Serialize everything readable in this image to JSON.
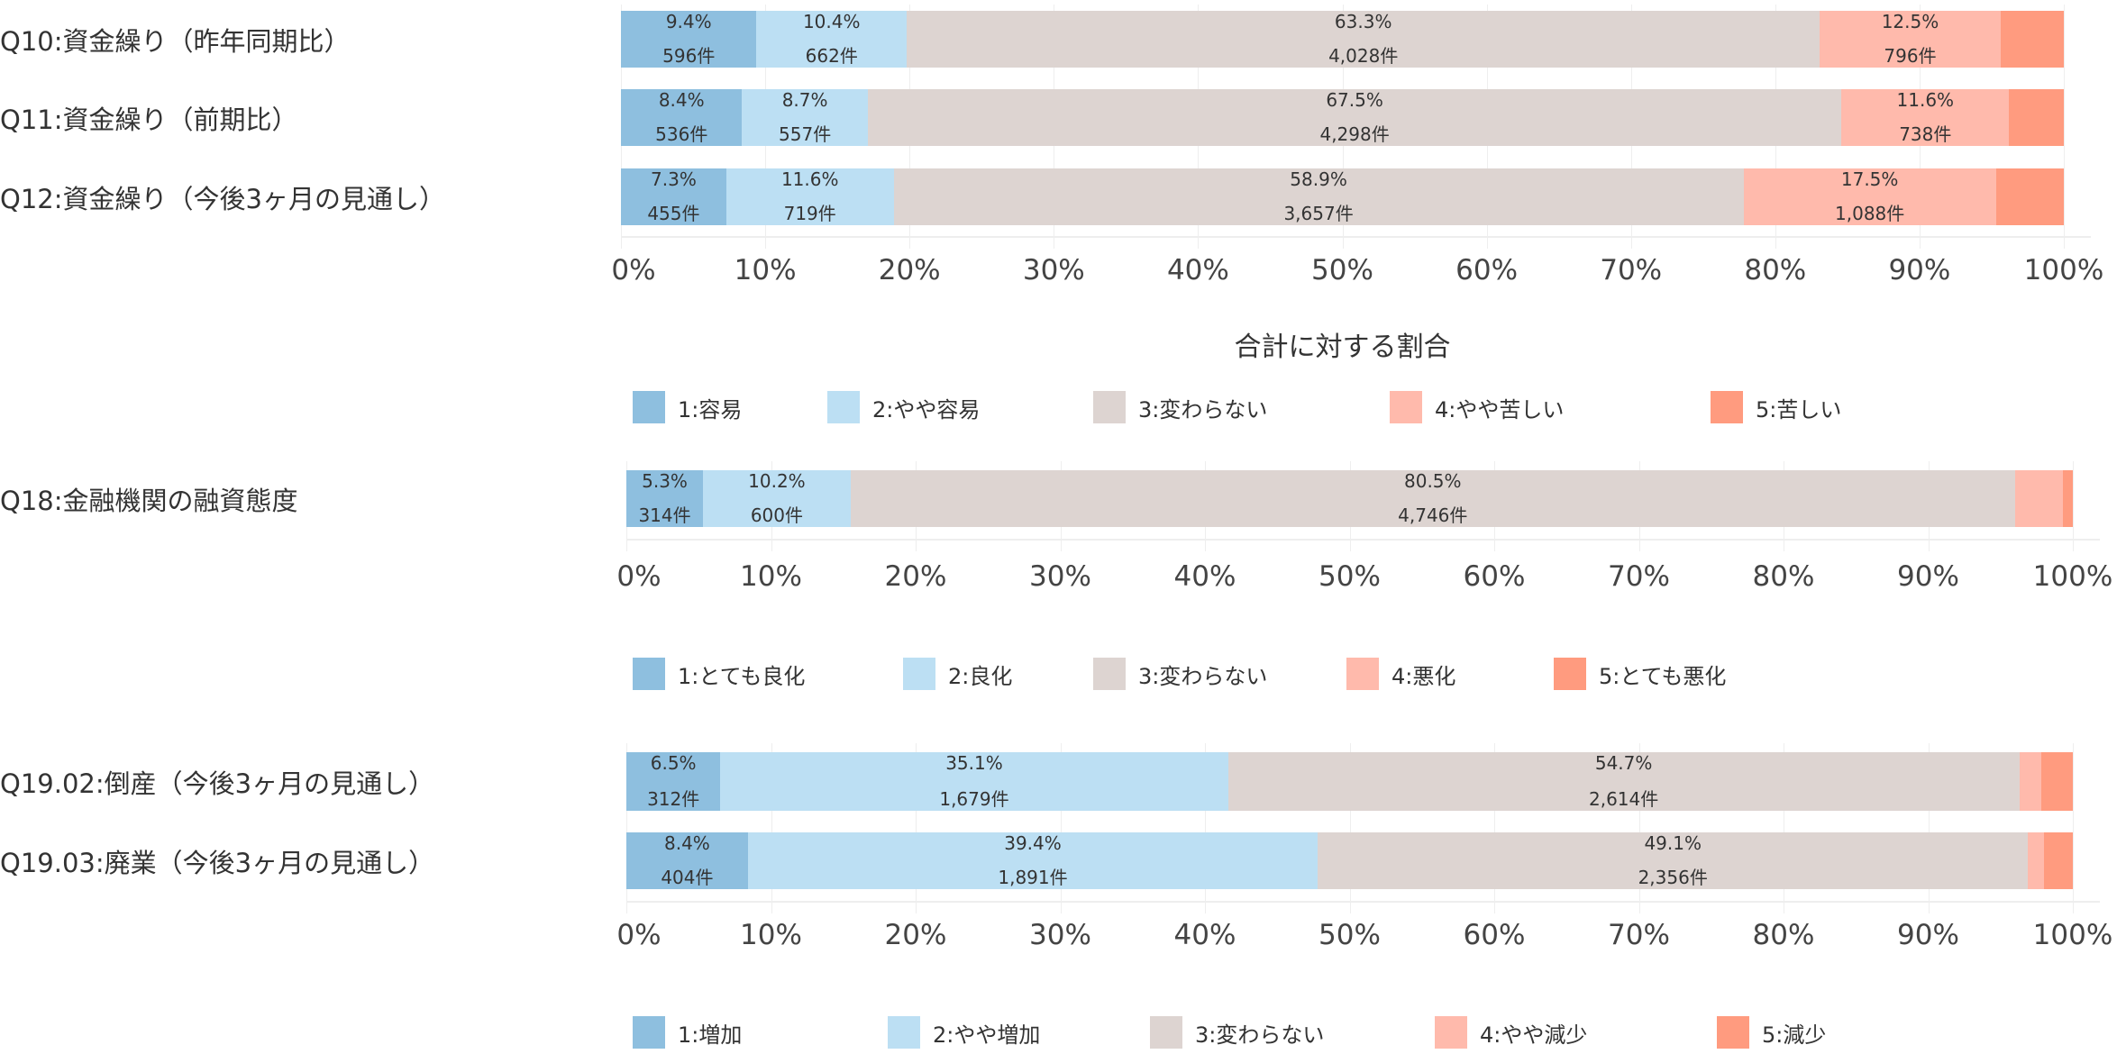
{
  "chart_data": [
    {
      "type": "bar",
      "orientation": "horizontal",
      "stacked": true,
      "normalized": true,
      "categories": [
        "Q10:資金繰り（昨年同期比）",
        "Q11:資金繰り（前期比）",
        "Q12:資金繰り（今後3ヶ月の見通し）"
      ],
      "series": [
        {
          "name": "1:容易",
          "color": "#8ebfdf",
          "values": [
            9.4,
            8.4,
            7.3
          ],
          "counts": [
            "596件",
            "536件",
            "455件"
          ]
        },
        {
          "name": "2:やや容易",
          "color": "#bcdff3",
          "values": [
            10.4,
            8.7,
            11.6
          ],
          "counts": [
            "662件",
            "557件",
            "719件"
          ]
        },
        {
          "name": "3:変わらない",
          "color": "#ddd4d1",
          "values": [
            63.3,
            67.5,
            58.9
          ],
          "counts": [
            "4,028件",
            "4,298件",
            "3,657件"
          ]
        },
        {
          "name": "4:やや苦しい",
          "color": "#ffbaac",
          "values": [
            12.5,
            11.6,
            17.5
          ],
          "counts": [
            "796件",
            "738件",
            "1,088件"
          ]
        },
        {
          "name": "5:苦しい",
          "color": "#ff9b7f",
          "values": [
            4.4,
            3.8,
            4.7
          ],
          "counts": [
            "",
            "",
            ""
          ]
        }
      ],
      "labeled_series": [
        0,
        1,
        2,
        3
      ],
      "xticks": [
        "0%",
        "10%",
        "20%",
        "30%",
        "40%",
        "50%",
        "60%",
        "70%",
        "80%",
        "90%",
        "100%"
      ],
      "xlabel": "合計に対する割合",
      "xlim": [
        0,
        100
      ],
      "grid": true,
      "legend": "bottom"
    },
    {
      "type": "bar",
      "orientation": "horizontal",
      "stacked": true,
      "normalized": true,
      "categories": [
        "Q18:金融機関の融資態度"
      ],
      "series": [
        {
          "name": "1:とても良化",
          "color": "#8ebfdf",
          "values": [
            5.3
          ],
          "counts": [
            "314件"
          ]
        },
        {
          "name": "2:良化",
          "color": "#bcdff3",
          "values": [
            10.2
          ],
          "counts": [
            "600件"
          ]
        },
        {
          "name": "3:変わらない",
          "color": "#ddd4d1",
          "values": [
            80.5
          ],
          "counts": [
            "4,746件"
          ]
        },
        {
          "name": "4:悪化",
          "color": "#ffbaac",
          "values": [
            3.3
          ],
          "counts": [
            ""
          ]
        },
        {
          "name": "5:とても悪化",
          "color": "#ff9b7f",
          "values": [
            0.7
          ],
          "counts": [
            ""
          ]
        }
      ],
      "labeled_series": [
        0,
        1,
        2
      ],
      "xticks": [
        "0%",
        "10%",
        "20%",
        "30%",
        "40%",
        "50%",
        "60%",
        "70%",
        "80%",
        "90%",
        "100%"
      ],
      "xlabel": "",
      "xlim": [
        0,
        100
      ],
      "grid": true,
      "legend": "bottom"
    },
    {
      "type": "bar",
      "orientation": "horizontal",
      "stacked": true,
      "normalized": true,
      "categories": [
        "Q19.02:倒産（今後3ヶ月の見通し）",
        "Q19.03:廃業（今後3ヶ月の見通し）"
      ],
      "series": [
        {
          "name": "1:増加",
          "color": "#8ebfdf",
          "values": [
            6.5,
            8.4
          ],
          "counts": [
            "312件",
            "404件"
          ]
        },
        {
          "name": "2:やや増加",
          "color": "#bcdff3",
          "values": [
            35.1,
            39.4
          ],
          "counts": [
            "1,679件",
            "1,891件"
          ]
        },
        {
          "name": "3:変わらない",
          "color": "#ddd4d1",
          "values": [
            54.7,
            49.1
          ],
          "counts": [
            "2,614件",
            "2,356件"
          ]
        },
        {
          "name": "4:やや減少",
          "color": "#ffbaac",
          "values": [
            1.5,
            1.1
          ],
          "counts": [
            "",
            ""
          ]
        },
        {
          "name": "5:減少",
          "color": "#ff9b7f",
          "values": [
            2.2,
            2.0
          ],
          "counts": [
            "",
            ""
          ]
        }
      ],
      "labeled_series": [
        0,
        1,
        2
      ],
      "xticks": [
        "0%",
        "10%",
        "20%",
        "30%",
        "40%",
        "50%",
        "60%",
        "70%",
        "80%",
        "90%",
        "100%"
      ],
      "xlabel": "",
      "xlim": [
        0,
        100
      ],
      "grid": true,
      "legend": "bottom"
    }
  ]
}
